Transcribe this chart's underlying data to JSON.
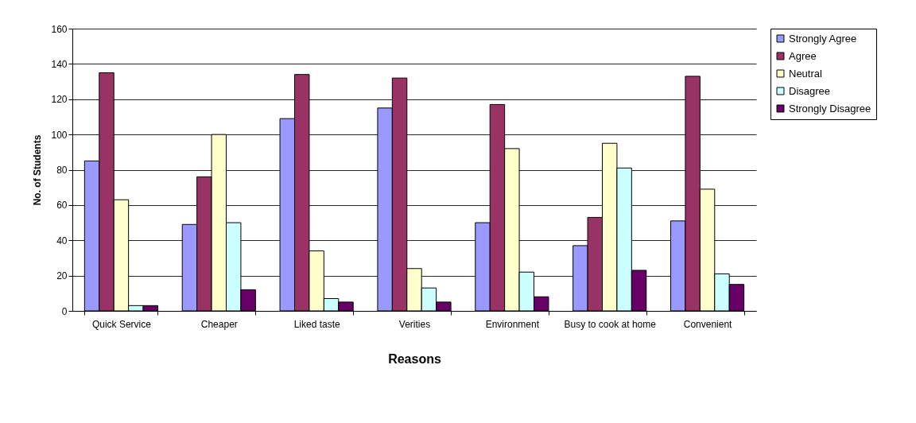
{
  "chart_data": {
    "type": "bar",
    "xlabel": "Reasons",
    "ylabel": "No. of Students",
    "categories": [
      "Quick Service",
      "Cheaper",
      "Liked taste",
      "Verities",
      "Environment",
      "Busy to cook at home",
      "Convenient"
    ],
    "series": [
      {
        "name": "Strongly Agree",
        "color": "#9999ff",
        "values": [
          85,
          49,
          109,
          115,
          50,
          37,
          51
        ]
      },
      {
        "name": "Agree",
        "color": "#993366",
        "values": [
          135,
          76,
          134,
          132,
          117,
          53,
          133
        ]
      },
      {
        "name": "Neutral",
        "color": "#ffffcc",
        "values": [
          63,
          100,
          34,
          24,
          92,
          95,
          69
        ]
      },
      {
        "name": "Disagree",
        "color": "#ccffff",
        "values": [
          3,
          50,
          7,
          13,
          22,
          81,
          21
        ]
      },
      {
        "name": "Strongly Disagree",
        "color": "#660066",
        "values": [
          3,
          12,
          5,
          5,
          8,
          23,
          15
        ]
      }
    ],
    "ylim": [
      0,
      160
    ],
    "yticks": [
      0,
      20,
      40,
      60,
      80,
      100,
      120,
      140,
      160
    ],
    "grid": "y",
    "legend": "right"
  }
}
